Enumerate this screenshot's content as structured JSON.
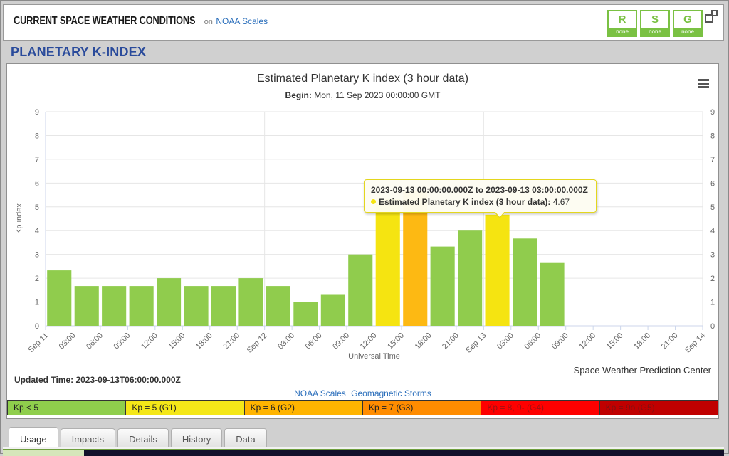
{
  "theme": {
    "badge_green": "#7ac143",
    "link_blue": "#2a6ebb",
    "title_blue": "#2a4b9b"
  },
  "header": {
    "title": "CURRENT SPACE WEATHER CONDITIONS",
    "on_label": "on",
    "noaa_scales_link": "NOAA Scales",
    "badges": [
      {
        "letter": "R",
        "status": "none"
      },
      {
        "letter": "S",
        "status": "none"
      },
      {
        "letter": "G",
        "status": "none"
      }
    ]
  },
  "page_title": "PLANETARY K-INDEX",
  "chart_data": {
    "type": "bar",
    "title": "Estimated Planetary K index (3 hour data)",
    "subtitle_label": "Begin:",
    "subtitle": "Mon, 11 Sep 2023 00:00:00 GMT",
    "xlabel": "Universal Time",
    "ylabel": "Kp index",
    "ylim": [
      0,
      9
    ],
    "yticks": [
      0,
      1,
      2,
      3,
      4,
      5,
      6,
      7,
      8,
      9
    ],
    "grid": true,
    "x_slots": 24,
    "x_tick_labels": [
      "Sep 11",
      "03:00",
      "06:00",
      "09:00",
      "12:00",
      "15:00",
      "18:00",
      "21:00",
      "Sep 12",
      "03:00",
      "06:00",
      "09:00",
      "12:00",
      "15:00",
      "18:00",
      "21:00",
      "Sep 13",
      "03:00",
      "06:00",
      "09:00",
      "12:00",
      "15:00",
      "18:00",
      "21:00",
      "Sep 14"
    ],
    "day_gridline_slots": [
      8,
      16,
      24
    ],
    "values": [
      2.33,
      1.67,
      1.67,
      1.67,
      2,
      1.67,
      1.67,
      2,
      1.67,
      1,
      1.33,
      3,
      5.33,
      5.67,
      3.33,
      4,
      4.67,
      3.67,
      2.67
    ],
    "colors": [
      "green",
      "green",
      "green",
      "green",
      "green",
      "green",
      "green",
      "green",
      "green",
      "green",
      "green",
      "green",
      "yellow",
      "orange",
      "green",
      "green",
      "yellow",
      "green",
      "green"
    ],
    "bar_colors": {
      "green": "#90cc4d",
      "yellow": "#f5e411",
      "orange": "#fdb913"
    },
    "grid_color": "#e6e6e6",
    "axis_color": "#ccd6eb",
    "legend_position": "none"
  },
  "tooltip": {
    "header": "2023-09-13 00:00:00.000Z to 2023-09-13 03:00:00.000Z",
    "series_label": "Estimated Planetary K index (3 hour data):",
    "value": "4.67",
    "marker_color": "#f5e411"
  },
  "credit": "Space Weather Prediction Center",
  "updated_time": "Updated Time: 2023-09-13T06:00:00.000Z",
  "scale_links": {
    "noaa_scales": "NOAA Scales",
    "geomagnetic_storms": "Geomagnetic Storms"
  },
  "kp_legend": [
    {
      "label": "Kp < 5",
      "color": "#8fce4c",
      "text_color": "#222222"
    },
    {
      "label": "Kp = 5 (G1)",
      "color": "#f4e718",
      "text_color": "#222222"
    },
    {
      "label": "Kp = 6 (G2)",
      "color": "#ffb400",
      "text_color": "#222222"
    },
    {
      "label": "Kp = 7 (G3)",
      "color": "#ff8c00",
      "text_color": "#222222"
    },
    {
      "label": "Kp = 8, 9- (G4)",
      "color": "#fe0000",
      "text_color": "#a01111"
    },
    {
      "label": "Kp = 9o (G5)",
      "color": "#c00000",
      "text_color": "#821010"
    }
  ],
  "tabs": [
    {
      "label": "Usage"
    },
    {
      "label": "Impacts"
    },
    {
      "label": "Details"
    },
    {
      "label": "History"
    },
    {
      "label": "Data"
    }
  ]
}
